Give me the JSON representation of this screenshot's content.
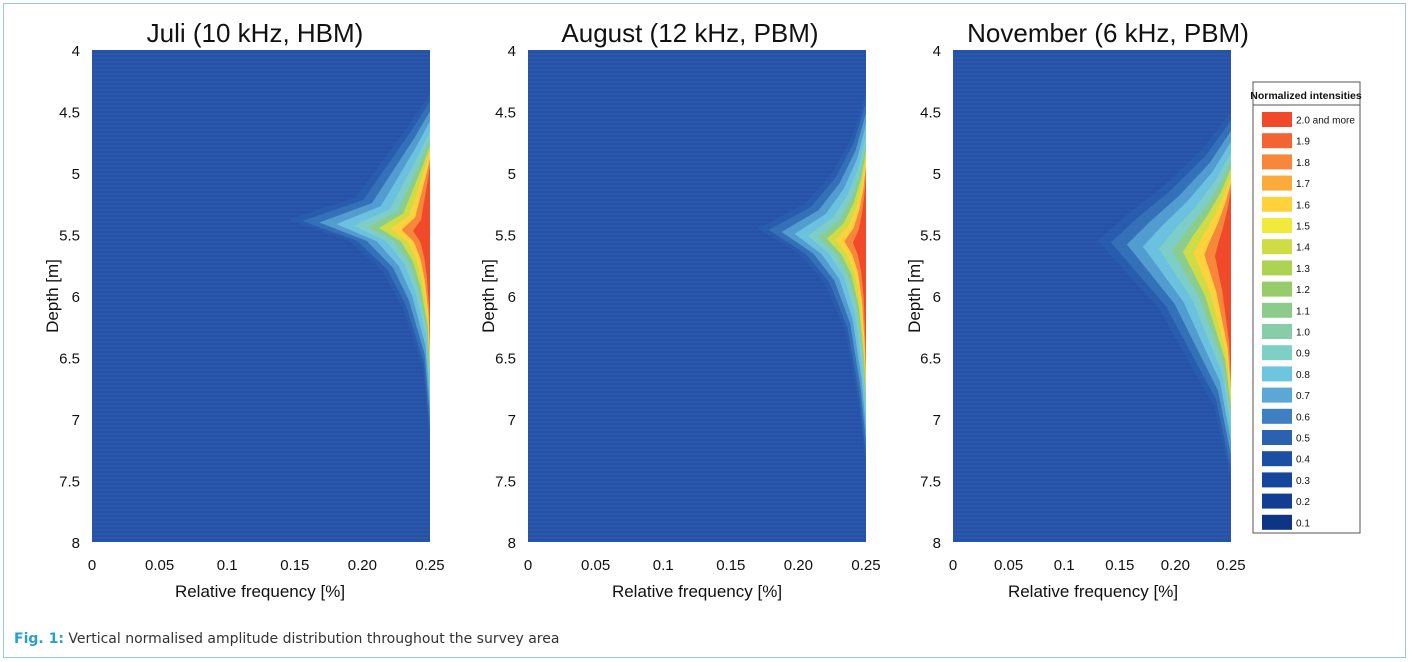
{
  "chart_data": [
    {
      "type": "heatmap",
      "title": "Juli (10 kHz, HBM)",
      "xlabel": "Relative frequency [%]",
      "ylabel": "Depth [m]",
      "xlim": [
        0,
        0.25
      ],
      "ylim": [
        4,
        8
      ],
      "y_reversed": true,
      "x_ticks": [
        "0",
        "0.05",
        "0.1",
        "0.15",
        "0.20",
        "0.25"
      ],
      "y_ticks": [
        "4",
        "4.5",
        "5",
        "5.5",
        "6",
        "6.5",
        "7",
        "7.5",
        "8"
      ],
      "profile_depths": [
        4.35,
        4.6,
        4.9,
        5.2,
        5.38,
        5.55,
        5.8,
        6.1,
        6.6,
        7.2
      ],
      "profile_extent_x": [
        0.25,
        0.235,
        0.215,
        0.195,
        0.145,
        0.19,
        0.215,
        0.23,
        0.245,
        0.25
      ],
      "peak_intensity": 2.0
    },
    {
      "type": "heatmap",
      "title": "August (12 kHz, PBM)",
      "xlabel": "Relative frequency [%]",
      "ylabel": "Depth [m]",
      "xlim": [
        0,
        0.25
      ],
      "ylim": [
        4,
        8
      ],
      "y_reversed": true,
      "x_ticks": [
        "0",
        "0.05",
        "0.1",
        "0.15",
        "0.20",
        "0.25"
      ],
      "y_ticks": [
        "4",
        "4.5",
        "5",
        "5.5",
        "6",
        "6.5",
        "7",
        "7.5",
        "8"
      ],
      "profile_depths": [
        4.35,
        4.7,
        5.0,
        5.25,
        5.45,
        5.65,
        5.9,
        6.3,
        6.9,
        7.4
      ],
      "profile_extent_x": [
        0.25,
        0.24,
        0.225,
        0.205,
        0.17,
        0.2,
        0.22,
        0.235,
        0.245,
        0.25
      ],
      "peak_intensity": 2.0
    },
    {
      "type": "heatmap",
      "title": "November (6 kHz, PBM)",
      "xlabel": "Relative frequency [%]",
      "ylabel": "Depth [m]",
      "xlim": [
        0,
        0.25
      ],
      "ylim": [
        4,
        8
      ],
      "y_reversed": true,
      "x_ticks": [
        "0",
        "0.05",
        "0.1",
        "0.15",
        "0.20",
        "0.25"
      ],
      "y_ticks": [
        "4",
        "4.5",
        "5",
        "5.5",
        "6",
        "6.5",
        "7",
        "7.5",
        "8"
      ],
      "profile_depths": [
        4.5,
        4.8,
        5.1,
        5.35,
        5.55,
        5.8,
        6.1,
        6.5,
        6.9,
        7.5
      ],
      "profile_extent_x": [
        0.25,
        0.225,
        0.19,
        0.155,
        0.13,
        0.155,
        0.185,
        0.21,
        0.235,
        0.25
      ],
      "peak_intensity": 2.0
    }
  ],
  "legend": {
    "title": "Normalized intensities",
    "items": [
      {
        "label": "2.0 and more",
        "color": "#f04a2a"
      },
      {
        "label": "1.9",
        "color": "#f36433"
      },
      {
        "label": "1.8",
        "color": "#f7873a"
      },
      {
        "label": "1.7",
        "color": "#fbaa3c"
      },
      {
        "label": "1.6",
        "color": "#fdd23c"
      },
      {
        "label": "1.5",
        "color": "#f2ea3a"
      },
      {
        "label": "1.4",
        "color": "#cfdc46"
      },
      {
        "label": "1.3",
        "color": "#aed252"
      },
      {
        "label": "1.2",
        "color": "#98cc6a"
      },
      {
        "label": "1.1",
        "color": "#8ccb8c"
      },
      {
        "label": "1.0",
        "color": "#86cda8"
      },
      {
        "label": "0.9",
        "color": "#7ecfc6"
      },
      {
        "label": "0.8",
        "color": "#6ec5e0"
      },
      {
        "label": "0.7",
        "color": "#5aa8d6"
      },
      {
        "label": "0.6",
        "color": "#3d7fc0"
      },
      {
        "label": "0.5",
        "color": "#2a62b0"
      },
      {
        "label": "0.4",
        "color": "#1b4fa3"
      },
      {
        "label": "0.3",
        "color": "#16469b"
      },
      {
        "label": "0.2",
        "color": "#123e92"
      },
      {
        "label": "0.1",
        "color": "#0e3484"
      }
    ]
  },
  "caption": {
    "label": "Fig. 1:",
    "text": "Vertical normalised amplitude distribution throughout the survey area"
  },
  "colors": {
    "background_field": "#2a57ad",
    "stripe_dark": "#24509f"
  }
}
